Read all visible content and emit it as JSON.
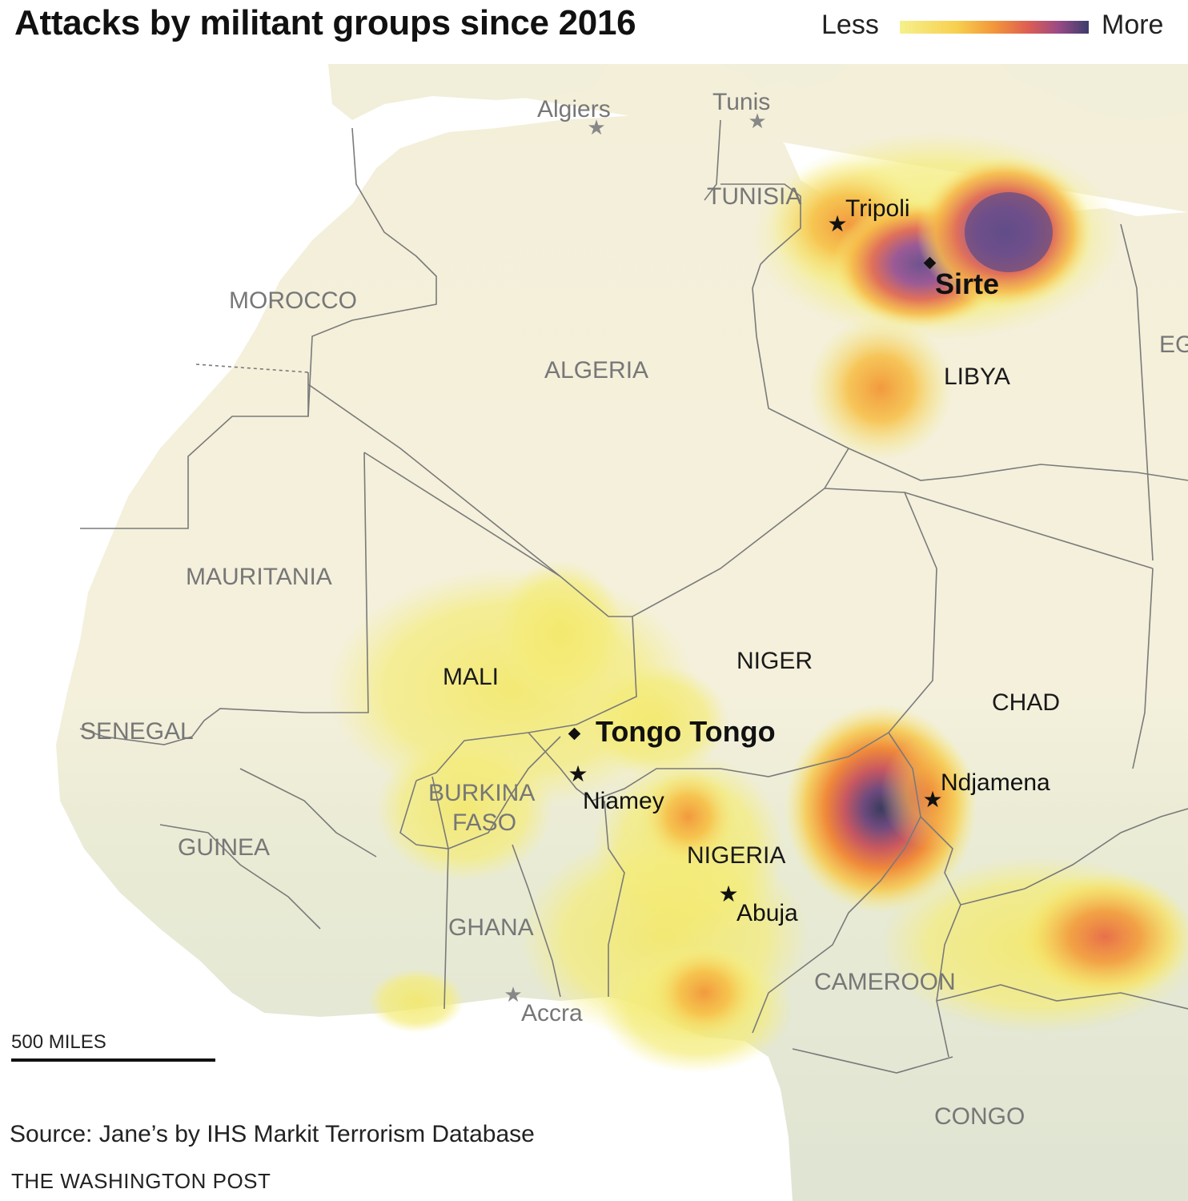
{
  "title": "Attacks by militant groups since 2016",
  "legend": {
    "less": "Less",
    "more": "More",
    "colors": [
      "#f3ee7a",
      "#f7c24a",
      "#f08a3a",
      "#d8545a",
      "#9a4a8a",
      "#3a3a6a"
    ]
  },
  "countries": {
    "tunisia": "TUNISIA",
    "morocco": "MOROCCO",
    "algeria": "ALGERIA",
    "libya": "LIBYA",
    "egypt": "EG",
    "mauritania": "MAURITANIA",
    "mali": "MALI",
    "niger": "NIGER",
    "chad": "CHAD",
    "senegal": "SENEGAL",
    "burkina_line1": "BURKINA",
    "burkina_line2": "FASO",
    "guinea": "GUINEA",
    "nigeria": "NIGERIA",
    "ghana": "GHANA",
    "cameroon": "CAMEROON",
    "congo": "CONGO"
  },
  "cities": {
    "algiers": "Algiers",
    "tunis": "Tunis",
    "tripoli": "Tripoli",
    "sirte": "Sirte",
    "tongo_tongo": "Tongo Tongo",
    "niamey": "Niamey",
    "ndjamena": "Ndjamena",
    "abuja": "Abuja",
    "accra": "Accra"
  },
  "map_data": {
    "hotspots": [
      {
        "place": "Lake Chad basin",
        "intensity": 1.0
      },
      {
        "place": "Tripoli–Sirte coast",
        "intensity": 0.9
      },
      {
        "place": "Central Libya",
        "intensity": 0.45
      },
      {
        "place": "Central African Republic / Cameroon",
        "intensity": 0.5
      },
      {
        "place": "Central Mali / Burkina Faso",
        "intensity": 0.25
      },
      {
        "place": "Southern Nigeria",
        "intensity": 0.35
      }
    ]
  },
  "scale_bar": "500 MILES",
  "source": "Source: Jane’s by IHS Markit Terrorism Database",
  "credit": "THE WASHINGTON POST"
}
